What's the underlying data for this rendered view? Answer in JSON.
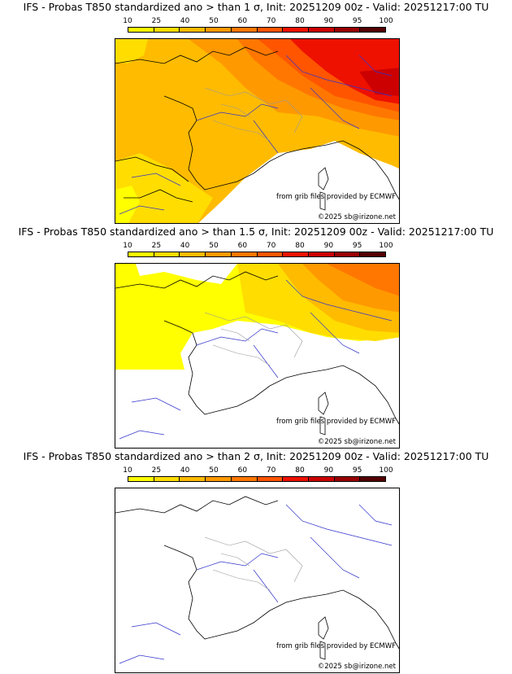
{
  "legend": {
    "ticks": [
      "10",
      "25",
      "40",
      "50",
      "60",
      "70",
      "80",
      "90",
      "95",
      "100"
    ],
    "colors": [
      "#ffff00",
      "#ffdd00",
      "#ffbb00",
      "#ff9900",
      "#ff7700",
      "#ff5500",
      "#ee1100",
      "#cc0000",
      "#990000",
      "#550000"
    ]
  },
  "credits": {
    "source": "from grib files provided by ECMWF",
    "copyright": "©2025 sb@irizone.net"
  },
  "panels": [
    {
      "title": "IFS - Probas T850  standardized ano > than 1 σ, Init: 20251209 00z - Valid: 20251217:00 TU"
    },
    {
      "title": "IFS - Probas T850  standardized ano > than 1.5 σ, Init: 20251209 00z - Valid: 20251217:00 TU"
    },
    {
      "title": "IFS - Probas T850  standardized ano > than 2 σ, Init: 20251209 00z - Valid: 20251217:00 TU"
    }
  ]
}
